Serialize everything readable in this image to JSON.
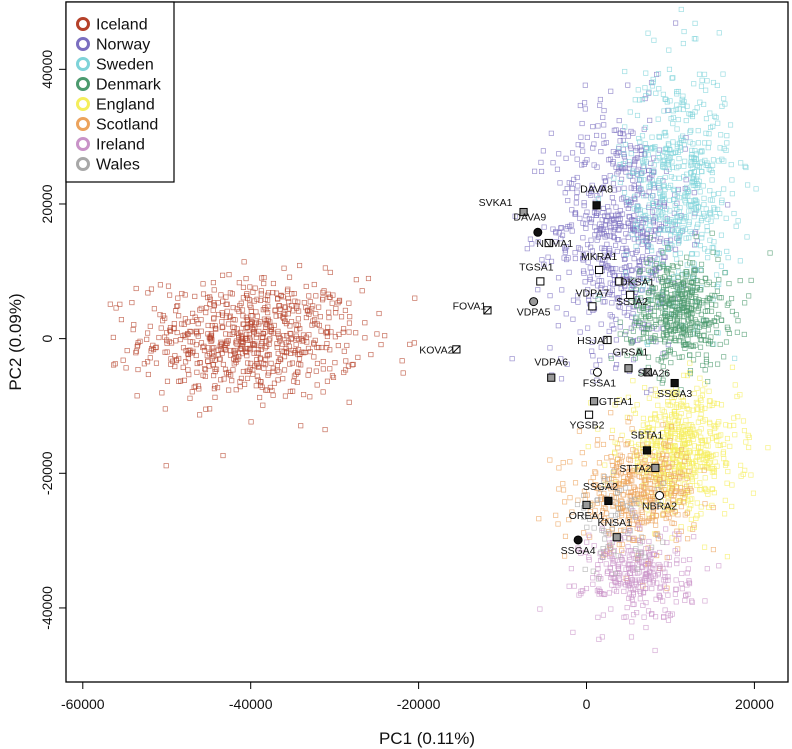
{
  "chart_data": {
    "type": "scatter",
    "xlabel": "PC1 (0.11%)",
    "ylabel": "PC2 (0.09%)",
    "xlim": [
      -62000,
      24000
    ],
    "ylim": [
      -51000,
      50000
    ],
    "xticks": [
      -60000,
      -40000,
      -20000,
      0,
      20000
    ],
    "yticks": [
      -40000,
      -20000,
      0,
      20000,
      40000
    ],
    "xtick_labels": [
      "-60000",
      "-40000",
      "-20000",
      "0",
      "20000"
    ],
    "ytick_labels": [
      "-40000",
      "-20000",
      "0",
      "20000",
      "40000"
    ],
    "legend": {
      "placement": "top-left"
    },
    "series": [
      {
        "name": "Iceland",
        "color": "#b5412a",
        "center": [
          -40000,
          0
        ],
        "spread": [
          6500,
          4500
        ],
        "count": 700
      },
      {
        "name": "Norway",
        "color": "#7b6fc0",
        "center": [
          4000,
          16000
        ],
        "spread": [
          4000,
          9000
        ],
        "count": 650
      },
      {
        "name": "Sweden",
        "color": "#7ed3d9",
        "center": [
          11000,
          23000
        ],
        "spread": [
          3200,
          9000
        ],
        "count": 550
      },
      {
        "name": "Denmark",
        "color": "#4c9a6e",
        "center": [
          11000,
          4000
        ],
        "spread": [
          3000,
          4000
        ],
        "count": 500
      },
      {
        "name": "England",
        "color": "#f5ee5c",
        "center": [
          11000,
          -17000
        ],
        "spread": [
          3500,
          4500
        ],
        "count": 600
      },
      {
        "name": "Scotland",
        "color": "#eca35c",
        "center": [
          6000,
          -23000
        ],
        "spread": [
          3500,
          4000
        ],
        "count": 400
      },
      {
        "name": "Ireland",
        "color": "#c993c8",
        "center": [
          6000,
          -35000
        ],
        "spread": [
          3200,
          3500
        ],
        "count": 300
      },
      {
        "name": "Wales",
        "color": "#a8a8a8",
        "center": [
          4000,
          -28000
        ],
        "spread": [
          2500,
          4000
        ],
        "count": 70
      }
    ],
    "annotations": [
      {
        "label": "SVKA1",
        "x": -7500,
        "y": 18800,
        "marker": "square",
        "fill": "#999999"
      },
      {
        "label": "DAVA8",
        "x": 1200,
        "y": 19800,
        "marker": "square",
        "fill": "#111111"
      },
      {
        "label": "DAVA9",
        "x": -5800,
        "y": 15800,
        "marker": "circle",
        "fill": "#111111"
      },
      {
        "label": "NNMA1",
        "x": -4500,
        "y": 14200,
        "marker": "square",
        "fill": "#ffffff"
      },
      {
        "label": "MKRA1",
        "x": 1500,
        "y": 10200,
        "marker": "square",
        "fill": "#ffffff"
      },
      {
        "label": "TGSA1",
        "x": -5500,
        "y": 8500,
        "marker": "square",
        "fill": "#ffffff"
      },
      {
        "label": "DKSA1",
        "x": 3900,
        "y": 8500,
        "marker": "square",
        "fill": "#ffffff"
      },
      {
        "label": "VDPA7",
        "x": 700,
        "y": 4800,
        "marker": "square",
        "fill": "#ffffff"
      },
      {
        "label": "SSJA2",
        "x": 5200,
        "y": 6500,
        "marker": "square",
        "fill": "#ffffff"
      },
      {
        "label": "FOVA1",
        "x": -11800,
        "y": 4200,
        "marker": "square-slash",
        "fill": "#ffffff"
      },
      {
        "label": "VDPA5",
        "x": -6300,
        "y": 5500,
        "marker": "circle",
        "fill": "#999999"
      },
      {
        "label": "KOVA2",
        "x": -15500,
        "y": -1600,
        "marker": "square-slash",
        "fill": "#ffffff"
      },
      {
        "label": "HSJA1",
        "x": 2500,
        "y": -200,
        "marker": "square",
        "fill": "#ffffff"
      },
      {
        "label": "GRSA1",
        "x": 5000,
        "y": -4400,
        "marker": "square",
        "fill": "#999999"
      },
      {
        "label": "VDPA6",
        "x": -4200,
        "y": -5800,
        "marker": "square",
        "fill": "#999999"
      },
      {
        "label": "FSSA1",
        "x": 1300,
        "y": -5000,
        "marker": "circle",
        "fill": "#ffffff"
      },
      {
        "label": "SKA26",
        "x": 7300,
        "y": -5000,
        "marker": "square",
        "fill": "#999999"
      },
      {
        "label": "SSGA3",
        "x": 10500,
        "y": -6600,
        "marker": "square",
        "fill": "#111111"
      },
      {
        "label": "GTEA1",
        "x": 900,
        "y": -9300,
        "marker": "square",
        "fill": "#999999"
      },
      {
        "label": "YGSB2",
        "x": 300,
        "y": -11300,
        "marker": "square",
        "fill": "#ffffff"
      },
      {
        "label": "SBTA1",
        "x": 7200,
        "y": -16600,
        "marker": "square",
        "fill": "#111111"
      },
      {
        "label": "STTA2",
        "x": 8200,
        "y": -19200,
        "marker": "square",
        "fill": "#999999"
      },
      {
        "label": "SSGA2",
        "x": 2600,
        "y": -24100,
        "marker": "square",
        "fill": "#111111"
      },
      {
        "label": "OREA1",
        "x": 0,
        "y": -24700,
        "marker": "square",
        "fill": "#999999"
      },
      {
        "label": "NBRA2",
        "x": 8700,
        "y": -23300,
        "marker": "circle",
        "fill": "#ffffff"
      },
      {
        "label": "KNSA1",
        "x": 3600,
        "y": -29500,
        "marker": "square",
        "fill": "#999999"
      },
      {
        "label": "SSGA4",
        "x": -1000,
        "y": -29900,
        "marker": "circle",
        "fill": "#111111"
      }
    ]
  }
}
